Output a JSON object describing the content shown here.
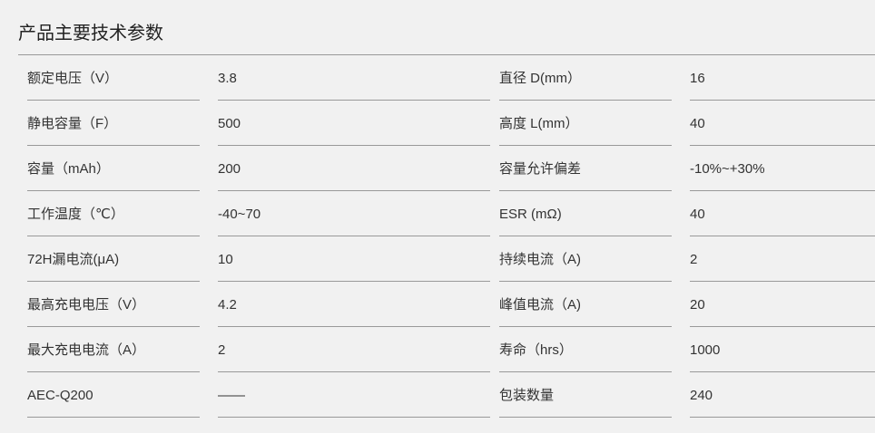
{
  "title": "产品主要技术参数",
  "rows": [
    {
      "label1": "额定电压（V）",
      "value1": "3.8",
      "label2": "直径 D(mm）",
      "value2": "16"
    },
    {
      "label1": "静电容量（F）",
      "value1": "500",
      "label2": "高度 L(mm）",
      "value2": "40"
    },
    {
      "label1": "容量（mAh）",
      "value1": "200",
      "label2": "容量允许偏差",
      "value2": "-10%~+30%"
    },
    {
      "label1": "工作温度（℃）",
      "value1": "-40~70",
      "label2": "ESR (mΩ)",
      "value2": "40"
    },
    {
      "label1": "72H漏电流(μA)",
      "value1": "10",
      "label2": "持续电流（A)",
      "value2": "2"
    },
    {
      "label1": "最高充电电压（V）",
      "value1": "4.2",
      "label2": "峰值电流（A)",
      "value2": "20"
    },
    {
      "label1": "最大充电电流（A）",
      "value1": "2",
      "label2": "寿命（hrs）",
      "value2": "1000"
    },
    {
      "label1": "AEC-Q200",
      "value1": "——",
      "label2": "包装数量",
      "value2": "240"
    }
  ]
}
